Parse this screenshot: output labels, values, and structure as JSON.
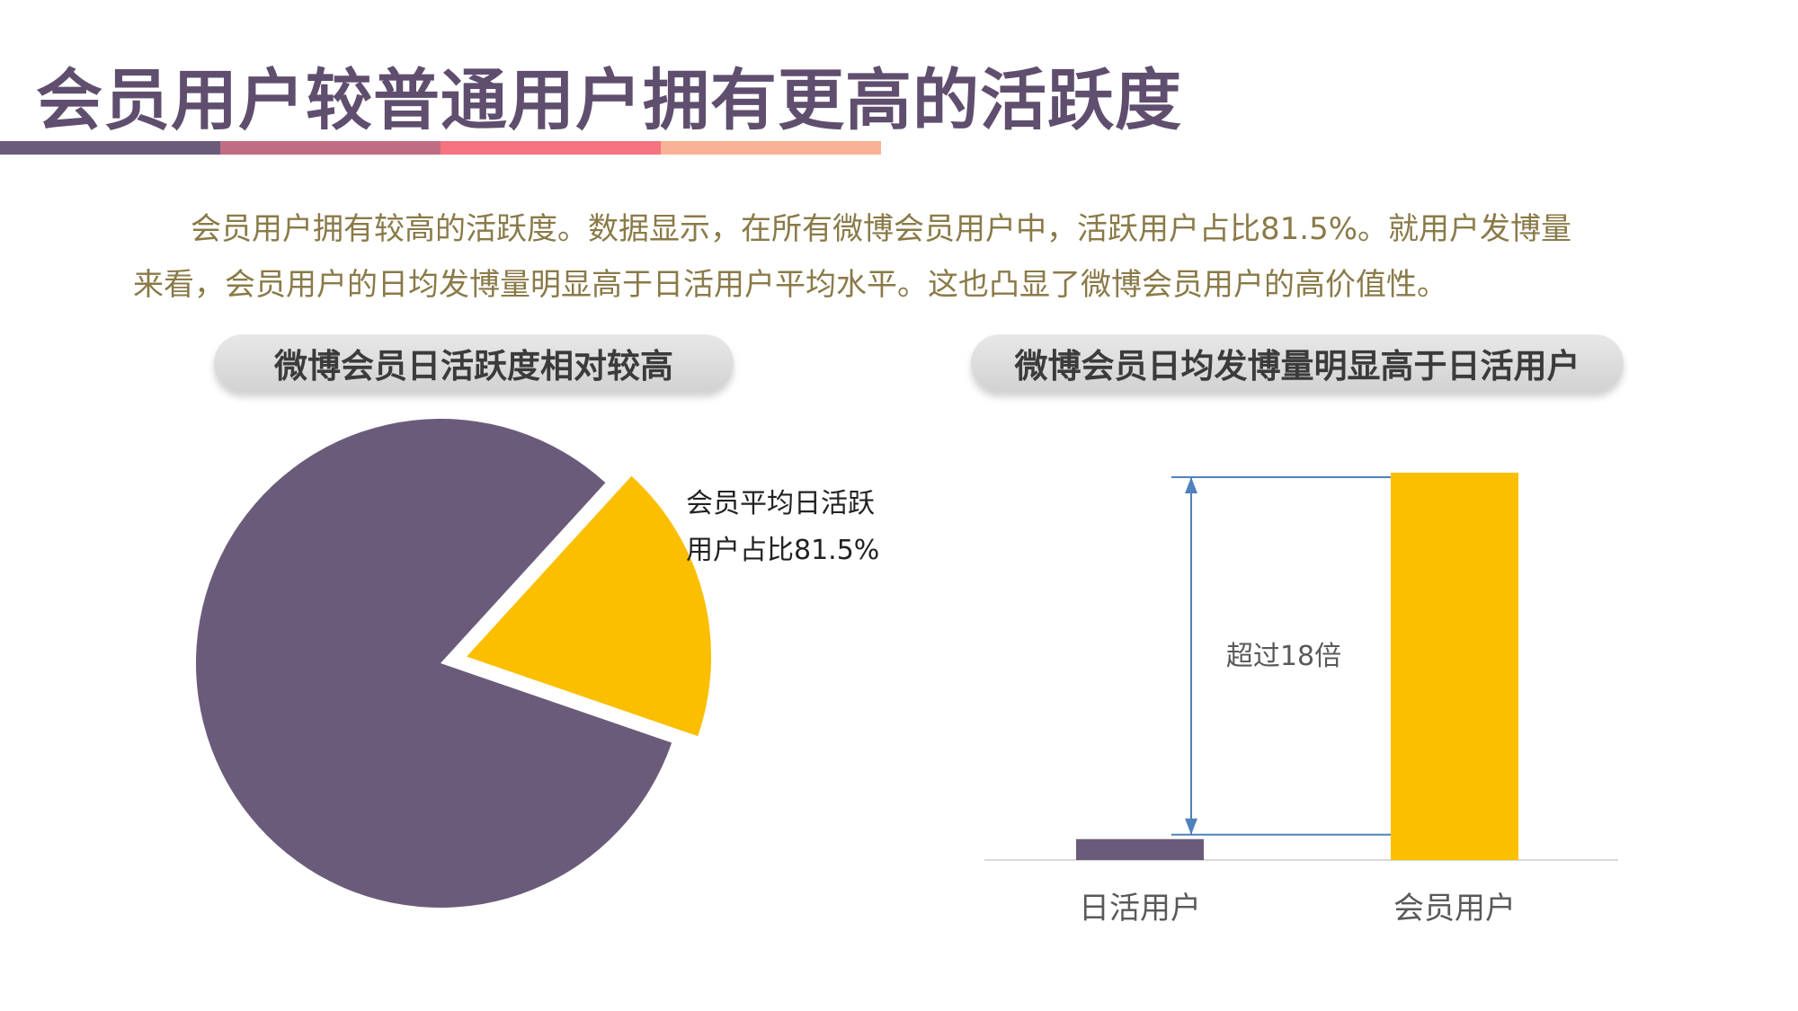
{
  "page": {
    "title": "会员用户较普通用户拥有更高的活跃度",
    "intro": "会员用户拥有较高的活跃度。数据显示，在所有微博会员用户中，活跃用户占比81.5%。就用户发博量来看，会员用户的日均发博量明显高于日活用户平均水平。这也凸显了微博会员用户的高价值性。",
    "bar_colors": [
      "#6b5b7b",
      "#c06c84",
      "#f67280",
      "#f8b195"
    ]
  },
  "chart_data": [
    {
      "type": "pie",
      "title": "微博会员日活跃度相对较高",
      "slices": [
        {
          "value": 81.5,
          "color": "#6b5b7b",
          "label": ""
        },
        {
          "value": 18.5,
          "color": "#fbbf00",
          "label": ""
        }
      ],
      "annotation": [
        "会员平均日活跃",
        "用户占比81.5%"
      ],
      "exploded_slice": 1
    },
    {
      "type": "bar",
      "title": "微博会员日均发博量明显高于日活用户",
      "categories": [
        "日活用户",
        "会员用户"
      ],
      "values": [
        1,
        18.5
      ],
      "colors": [
        "#6b5b7b",
        "#fbbf00"
      ],
      "annotation": "超过18倍",
      "ylim": [
        0,
        18.5
      ]
    }
  ]
}
